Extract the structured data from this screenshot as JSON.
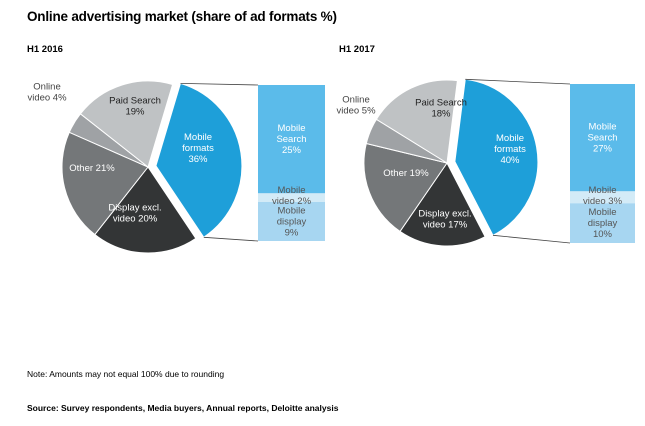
{
  "title": "Online advertising market (share of ad formats %)",
  "note": "Note: Amounts may not equal 100% due to rounding",
  "source": "Source: Survey respondents, Media buyers, Annual reports, Deloitte analysis",
  "colors": {
    "mobile_formats": "#1e9fd9",
    "paid_search": "#bfc2c4",
    "online_video": "#9fa2a5",
    "other": "#747779",
    "display": "#333536",
    "mobile_search": "#5bbbea",
    "mobile_video": "#d3ebf7",
    "mobile_display": "#a7d6f1",
    "connector": "#444444"
  },
  "chart_data": [
    {
      "type": "pie",
      "period": "H1 2016",
      "slices": [
        {
          "key": "mobile_formats",
          "label": [
            "Mobile",
            "formats",
            "36%"
          ],
          "value": 36,
          "color": "#1e9fd9"
        },
        {
          "key": "display",
          "label": [
            "Display excl.",
            "video 20%"
          ],
          "value": 20,
          "color": "#333536"
        },
        {
          "key": "other",
          "label": [
            "Other 21%"
          ],
          "value": 21,
          "color": "#747779"
        },
        {
          "key": "online_video",
          "label": [
            "Online",
            "video 4%"
          ],
          "value": 4,
          "color": "#9fa2a5"
        },
        {
          "key": "paid_search",
          "label": [
            "Paid Search",
            "19%"
          ],
          "value": 19,
          "color": "#bfc2c4"
        }
      ],
      "breakdown": [
        {
          "key": "mobile_search",
          "label": [
            "Mobile",
            "Search",
            "25%"
          ],
          "value": 25,
          "color": "#5bbbea"
        },
        {
          "key": "mobile_video",
          "label": [
            "Mobile",
            "video 2%"
          ],
          "value": 2,
          "color": "#d3ebf7"
        },
        {
          "key": "mobile_display",
          "label": [
            "Mobile",
            "display",
            "9%"
          ],
          "value": 9,
          "color": "#a7d6f1"
        }
      ]
    },
    {
      "type": "pie",
      "period": "H1 2017",
      "slices": [
        {
          "key": "mobile_formats",
          "label": [
            "Mobile",
            "formats",
            "40%"
          ],
          "value": 40,
          "color": "#1e9fd9"
        },
        {
          "key": "display",
          "label": [
            "Display excl.",
            "video 17%"
          ],
          "value": 17,
          "color": "#333536"
        },
        {
          "key": "other",
          "label": [
            "Other 19%"
          ],
          "value": 19,
          "color": "#747779"
        },
        {
          "key": "online_video",
          "label": [
            "Online",
            "video 5%"
          ],
          "value": 5,
          "color": "#9fa2a5"
        },
        {
          "key": "paid_search",
          "label": [
            "Paid Search",
            "18%"
          ],
          "value": 18,
          "color": "#bfc2c4"
        }
      ],
      "breakdown": [
        {
          "key": "mobile_search",
          "label": [
            "Mobile",
            "Search",
            "27%"
          ],
          "value": 27,
          "color": "#5bbbea"
        },
        {
          "key": "mobile_video",
          "label": [
            "Mobile",
            "video 3%"
          ],
          "value": 3,
          "color": "#d3ebf7"
        },
        {
          "key": "mobile_display",
          "label": [
            "Mobile",
            "display",
            "10%"
          ],
          "value": 10,
          "color": "#a7d6f1"
        }
      ]
    }
  ]
}
